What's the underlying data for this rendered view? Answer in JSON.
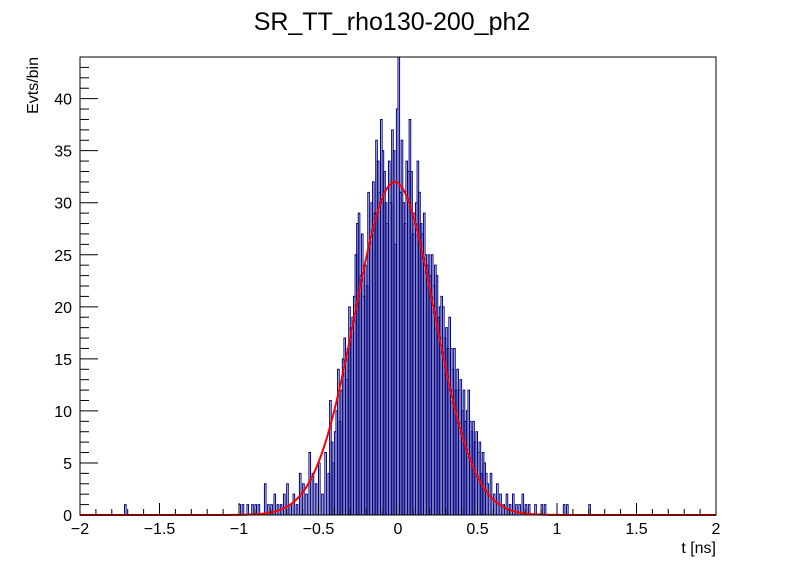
{
  "chart_data": {
    "type": "histogram",
    "title": "SR_TT_rho130-200_ph2",
    "xlabel": "t [ns]",
    "ylabel": "Evts/bin",
    "xlim": [
      -2,
      2
    ],
    "ylim": [
      0,
      44
    ],
    "xticks": [
      "−2",
      "−1.5",
      "−1",
      "−0.5",
      "0",
      "0.5",
      "1",
      "1.5",
      "2"
    ],
    "yticks": [
      "0",
      "5",
      "10",
      "15",
      "20",
      "25",
      "30",
      "35",
      "40"
    ],
    "histogram": {
      "color": "#000080",
      "bin_width": 0.01,
      "bins": [
        [
          -1.72,
          1
        ],
        [
          -1.0,
          1
        ],
        [
          -0.98,
          1
        ],
        [
          -0.95,
          1
        ],
        [
          -0.92,
          1
        ],
        [
          -0.9,
          1
        ],
        [
          -0.88,
          1
        ],
        [
          -0.84,
          3
        ],
        [
          -0.82,
          1
        ],
        [
          -0.8,
          1
        ],
        [
          -0.78,
          2
        ],
        [
          -0.76,
          1
        ],
        [
          -0.74,
          1
        ],
        [
          -0.72,
          2
        ],
        [
          -0.7,
          3
        ],
        [
          -0.68,
          1
        ],
        [
          -0.66,
          2
        ],
        [
          -0.64,
          1
        ],
        [
          -0.62,
          4
        ],
        [
          -0.6,
          3
        ],
        [
          -0.58,
          2
        ],
        [
          -0.56,
          6
        ],
        [
          -0.54,
          4
        ],
        [
          -0.52,
          3
        ],
        [
          -0.5,
          5
        ],
        [
          -0.48,
          2
        ],
        [
          -0.46,
          6
        ],
        [
          -0.44,
          4
        ],
        [
          -0.43,
          11
        ],
        [
          -0.42,
          7
        ],
        [
          -0.41,
          5
        ],
        [
          -0.4,
          8
        ],
        [
          -0.39,
          10
        ],
        [
          -0.38,
          14
        ],
        [
          -0.37,
          9
        ],
        [
          -0.36,
          12
        ],
        [
          -0.35,
          15
        ],
        [
          -0.34,
          17
        ],
        [
          -0.33,
          13
        ],
        [
          -0.32,
          16
        ],
        [
          -0.31,
          20
        ],
        [
          -0.3,
          18
        ],
        [
          -0.29,
          19
        ],
        [
          -0.28,
          21
        ],
        [
          -0.27,
          25
        ],
        [
          -0.26,
          28
        ],
        [
          -0.25,
          29
        ],
        [
          -0.24,
          23
        ],
        [
          -0.23,
          27
        ],
        [
          -0.22,
          21
        ],
        [
          -0.21,
          24
        ],
        [
          -0.2,
          22
        ],
        [
          -0.19,
          31
        ],
        [
          -0.18,
          26
        ],
        [
          -0.17,
          30
        ],
        [
          -0.16,
          32
        ],
        [
          -0.15,
          29
        ],
        [
          -0.14,
          36
        ],
        [
          -0.13,
          34
        ],
        [
          -0.12,
          31
        ],
        [
          -0.11,
          38
        ],
        [
          -0.1,
          35
        ],
        [
          -0.09,
          33
        ],
        [
          -0.08,
          30
        ],
        [
          -0.07,
          28
        ],
        [
          -0.06,
          34
        ],
        [
          -0.05,
          30
        ],
        [
          -0.04,
          37
        ],
        [
          -0.03,
          35
        ],
        [
          -0.02,
          26
        ],
        [
          -0.01,
          39
        ],
        [
          0.0,
          44
        ],
        [
          0.01,
          31
        ],
        [
          0.02,
          36
        ],
        [
          0.03,
          30
        ],
        [
          0.04,
          28
        ],
        [
          0.05,
          34
        ],
        [
          0.06,
          33
        ],
        [
          0.07,
          38
        ],
        [
          0.08,
          33
        ],
        [
          0.09,
          27
        ],
        [
          0.1,
          29
        ],
        [
          0.11,
          30
        ],
        [
          0.12,
          34
        ],
        [
          0.13,
          31
        ],
        [
          0.14,
          28
        ],
        [
          0.15,
          27
        ],
        [
          0.16,
          29
        ],
        [
          0.17,
          25
        ],
        [
          0.18,
          24
        ],
        [
          0.19,
          25
        ],
        [
          0.2,
          23
        ],
        [
          0.21,
          25
        ],
        [
          0.22,
          22
        ],
        [
          0.23,
          24
        ],
        [
          0.24,
          23
        ],
        [
          0.25,
          19
        ],
        [
          0.26,
          20
        ],
        [
          0.27,
          21
        ],
        [
          0.28,
          20
        ],
        [
          0.29,
          17
        ],
        [
          0.3,
          18
        ],
        [
          0.31,
          16
        ],
        [
          0.32,
          19
        ],
        [
          0.33,
          16
        ],
        [
          0.34,
          14
        ],
        [
          0.35,
          16
        ],
        [
          0.36,
          12
        ],
        [
          0.37,
          14
        ],
        [
          0.38,
          12
        ],
        [
          0.39,
          13
        ],
        [
          0.4,
          10
        ],
        [
          0.41,
          12
        ],
        [
          0.42,
          9
        ],
        [
          0.43,
          10
        ],
        [
          0.44,
          12
        ],
        [
          0.45,
          9
        ],
        [
          0.46,
          8
        ],
        [
          0.47,
          9
        ],
        [
          0.48,
          7
        ],
        [
          0.49,
          8
        ],
        [
          0.5,
          6
        ],
        [
          0.51,
          7
        ],
        [
          0.52,
          4
        ],
        [
          0.53,
          6
        ],
        [
          0.54,
          5
        ],
        [
          0.55,
          4
        ],
        [
          0.56,
          3
        ],
        [
          0.58,
          4
        ],
        [
          0.6,
          2
        ],
        [
          0.62,
          3
        ],
        [
          0.64,
          2
        ],
        [
          0.66,
          1
        ],
        [
          0.68,
          2
        ],
        [
          0.7,
          1
        ],
        [
          0.72,
          2
        ],
        [
          0.74,
          1
        ],
        [
          0.76,
          1
        ],
        [
          0.78,
          2
        ],
        [
          0.8,
          1
        ],
        [
          0.82,
          1
        ],
        [
          0.86,
          1
        ],
        [
          0.9,
          1
        ],
        [
          0.92,
          1
        ],
        [
          1.04,
          1
        ],
        [
          1.06,
          1
        ],
        [
          1.2,
          1
        ]
      ]
    },
    "fit": {
      "type": "gaussian",
      "color": "#ff0000",
      "amplitude": 32,
      "mean": -0.02,
      "sigma": 0.25
    }
  }
}
